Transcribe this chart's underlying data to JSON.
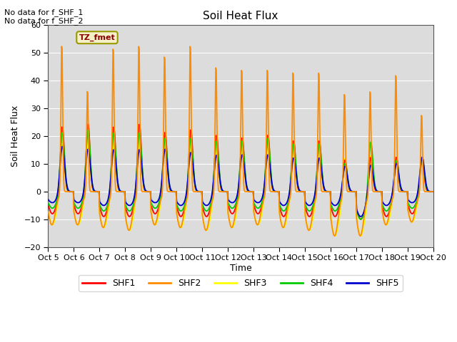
{
  "title": "Soil Heat Flux",
  "ylabel": "Soil Heat Flux",
  "xlabel": "Time",
  "ylim": [
    -20,
    60
  ],
  "yticks": [
    -20,
    -10,
    0,
    10,
    20,
    30,
    40,
    50,
    60
  ],
  "xtick_labels": [
    "Oct 5",
    "Oct 6",
    "Oct 7",
    "Oct 8",
    "Oct 9",
    "Oct 10",
    "Oct 11",
    "Oct 12",
    "Oct 13",
    "Oct 14",
    "Oct 15",
    "Oct 16",
    "Oct 17",
    "Oct 18",
    "Oct 19",
    "Oct 20"
  ],
  "no_data_texts": [
    "No data for f_SHF_1",
    "No data for f_SHF_2"
  ],
  "annotation_box_text": "TZ_fmet",
  "annotation_box_color": "#f5f0c8",
  "annotation_box_edgecolor": "#999900",
  "annotation_text_color": "#8B0000",
  "colors": {
    "SHF1": "#FF0000",
    "SHF2": "#FF8C00",
    "SHF3": "#FFFF00",
    "SHF4": "#00CC00",
    "SHF5": "#0000CD"
  },
  "background_color": "#DCDCDC",
  "figure_background": "#FFFFFF",
  "grid_color": "#FFFFFF",
  "n_days": 15,
  "hours_per_day": 48,
  "start_day": 5,
  "shf2_peaks": [
    55,
    38,
    54,
    55,
    51,
    55,
    47,
    46,
    46,
    45,
    45,
    37,
    38,
    44,
    29
  ],
  "shf2_troughs": [
    -12,
    -12,
    -13,
    -14,
    -12,
    -13,
    -14,
    -13,
    -12,
    -13,
    -14,
    -16,
    -16,
    -12,
    -11
  ],
  "shf3_peaks": [
    19,
    20,
    19,
    20,
    20,
    19,
    18,
    18,
    18,
    17,
    17,
    13,
    14,
    13,
    13
  ],
  "shf3_troughs": [
    -12,
    -12,
    -13,
    -14,
    -12,
    -13,
    -14,
    -13,
    -12,
    -13,
    -14,
    -16,
    -16,
    -12,
    -11
  ],
  "shf1_peaks": [
    24,
    25,
    24,
    25,
    22,
    23,
    21,
    20,
    21,
    19,
    19,
    12,
    13,
    13,
    13
  ],
  "shf1_troughs": [
    -8,
    -8,
    -9,
    -9,
    -8,
    -9,
    -9,
    -8,
    -8,
    -9,
    -9,
    -9,
    -10,
    -9,
    -8
  ],
  "shf4_peaks": [
    22,
    23,
    22,
    22,
    20,
    20,
    19,
    19,
    20,
    18,
    18,
    11,
    19,
    12,
    13
  ],
  "shf4_troughs": [
    -6,
    -6,
    -7,
    -7,
    -6,
    -7,
    -7,
    -6,
    -6,
    -7,
    -7,
    -7,
    -10,
    -7,
    -6
  ],
  "shf5_peaks": [
    17,
    16,
    16,
    16,
    16,
    15,
    14,
    14,
    14,
    13,
    13,
    10,
    11,
    11,
    13
  ],
  "shf5_troughs": [
    -4,
    -4,
    -5,
    -5,
    -4,
    -5,
    -5,
    -4,
    -4,
    -5,
    -5,
    -5,
    -9,
    -5,
    -4
  ]
}
